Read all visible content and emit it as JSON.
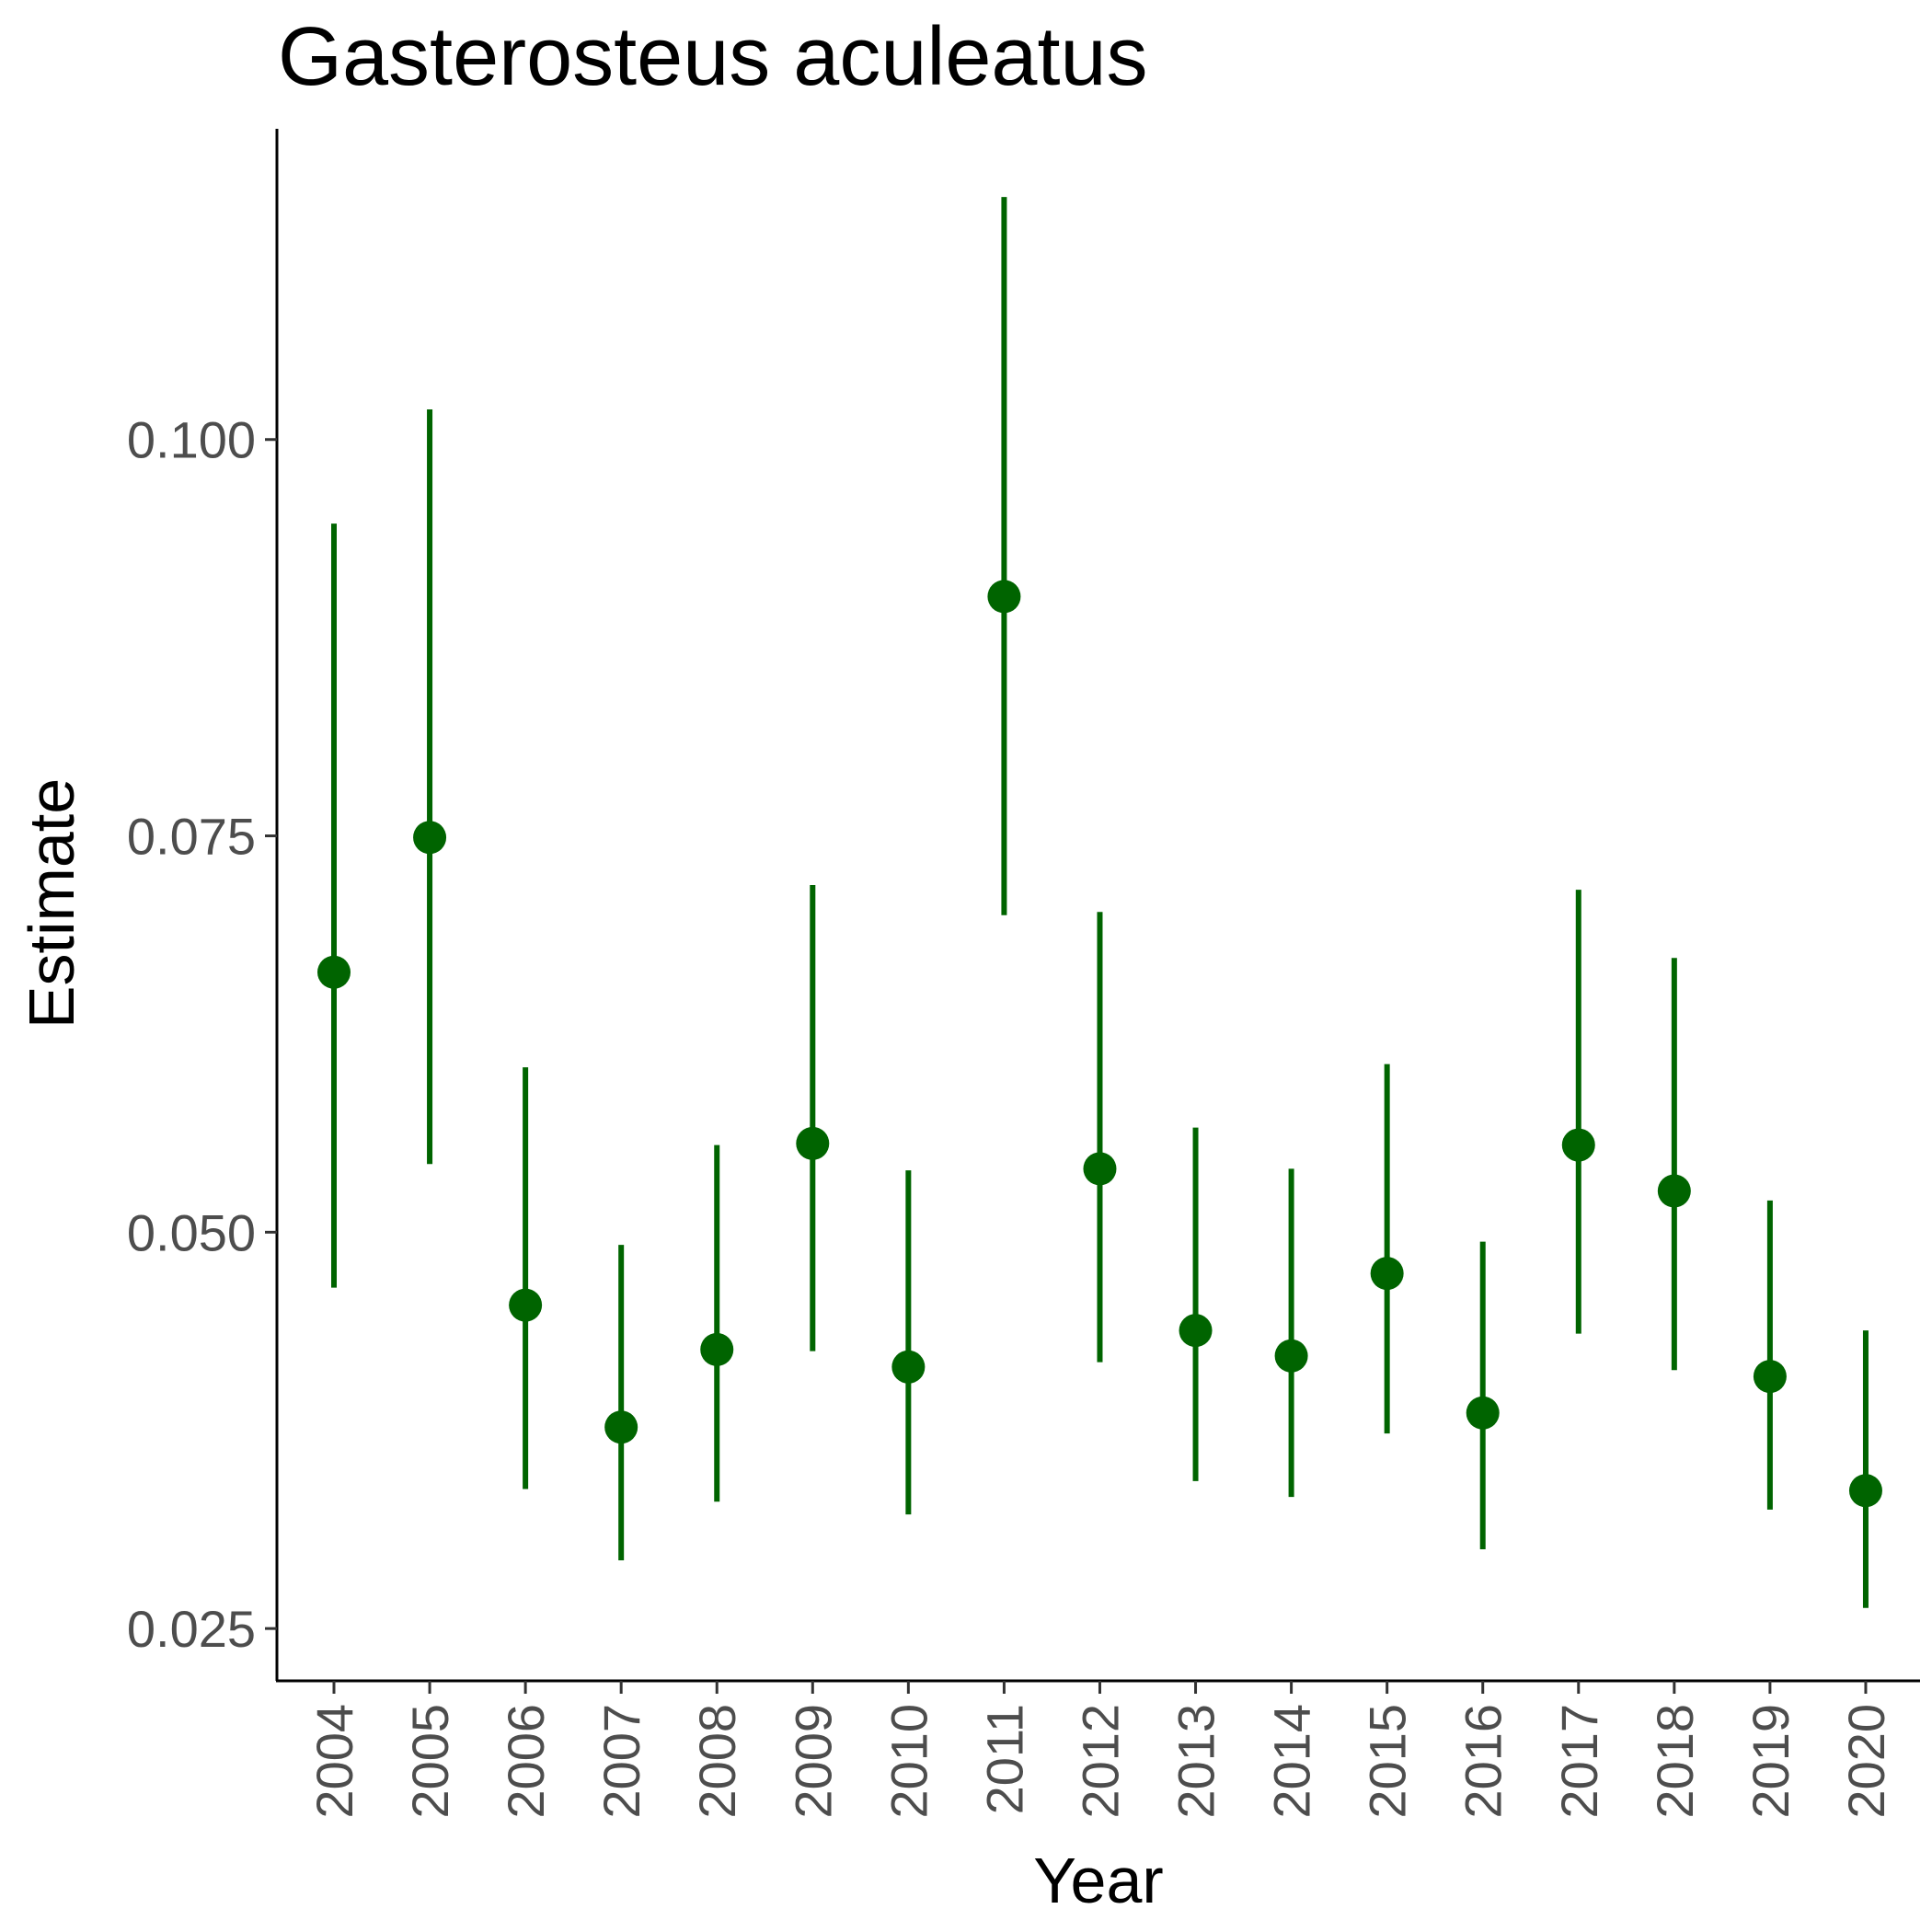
{
  "chart_data": {
    "type": "scatter",
    "title": "Gasterosteus aculeatus",
    "xlabel": "Year",
    "ylabel": "Estimate",
    "categories": [
      "2004",
      "2005",
      "2006",
      "2007",
      "2008",
      "2009",
      "2010",
      "2011",
      "2012",
      "2013",
      "2014",
      "2015",
      "2016",
      "2017",
      "2018",
      "2019",
      "2020"
    ],
    "estimates": [
      0.0664,
      0.0749,
      0.0454,
      0.0377,
      0.0426,
      0.0556,
      0.0415,
      0.0901,
      0.054,
      0.0438,
      0.0422,
      0.0474,
      0.0386,
      0.0555,
      0.0526,
      0.0409,
      0.0337
    ],
    "lower": [
      0.0465,
      0.0543,
      0.0338,
      0.0293,
      0.033,
      0.0425,
      0.0322,
      0.07,
      0.0418,
      0.0343,
      0.0333,
      0.0373,
      0.03,
      0.0436,
      0.0413,
      0.0325,
      0.0263
    ],
    "upper": [
      0.0947,
      0.1019,
      0.0604,
      0.0492,
      0.0555,
      0.0719,
      0.0539,
      0.1153,
      0.0702,
      0.0566,
      0.054,
      0.0606,
      0.0494,
      0.0716,
      0.0673,
      0.052,
      0.0438
    ],
    "yticks": [
      0.025,
      0.05,
      0.075,
      0.1
    ],
    "ytick_labels": [
      "0.025",
      "0.050",
      "0.075",
      "0.100"
    ],
    "ylim": [
      0.0217,
      0.1196
    ],
    "grid": false,
    "legend": "none",
    "color": "#006400"
  }
}
